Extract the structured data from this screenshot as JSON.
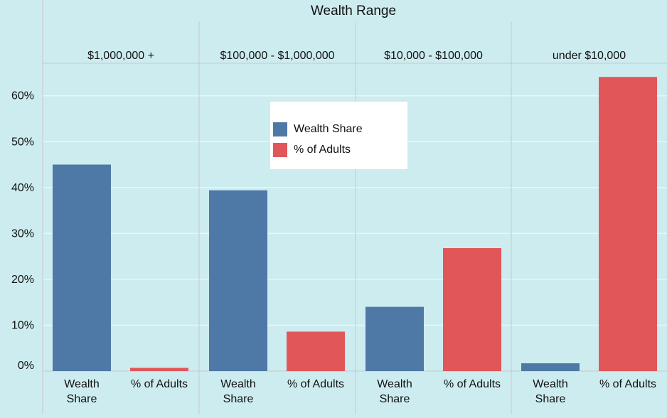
{
  "chart_data": {
    "type": "bar",
    "title": "Wealth Range",
    "groups": [
      "$1,000,000 +",
      "$100,000 - $1,000,000",
      "$10,000 - $100,000",
      "under $10,000"
    ],
    "series": [
      {
        "name": "Wealth Share",
        "label_lines": [
          "Wealth",
          "Share"
        ],
        "color": "#4e79a7",
        "values": [
          45.0,
          39.4,
          14.0,
          1.7
        ]
      },
      {
        "name": "% of Adults",
        "label_lines": [
          "% of Adults"
        ],
        "color": "#e15759",
        "values": [
          0.7,
          8.6,
          26.8,
          64.1
        ]
      }
    ],
    "y_ticks": [
      0,
      10,
      20,
      30,
      40,
      50,
      60
    ],
    "y_tick_labels": [
      "0%",
      "10%",
      "20%",
      "30%",
      "40%",
      "50%",
      "60%"
    ],
    "ylim": [
      0,
      67
    ],
    "grid": true,
    "legend_position": "top-center"
  }
}
